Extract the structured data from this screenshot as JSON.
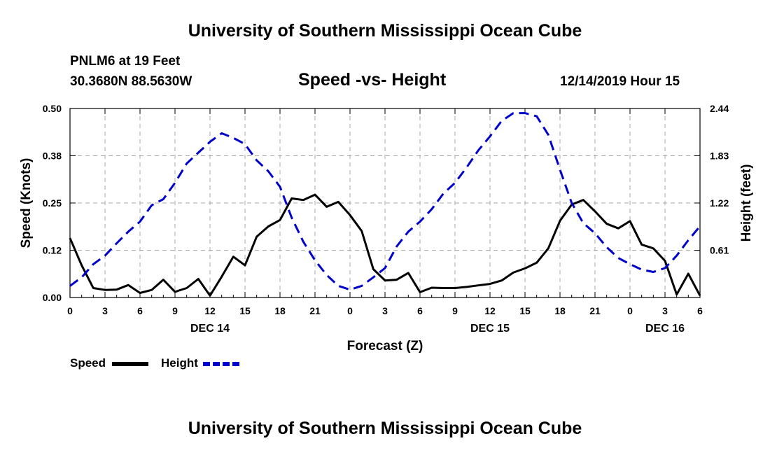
{
  "header": {
    "top_title": "University of Southern Mississippi Ocean Cube",
    "bottom_title": "University of Southern Mississippi Ocean Cube",
    "station": "PNLM6 at 19 Feet",
    "coords": "30.3680N 88.5630W",
    "date_hour": "12/14/2019 Hour 15"
  },
  "chart_data": {
    "type": "line",
    "title": "Speed -vs- Height",
    "xlabel": "Forecast (Z)",
    "ylabel": "Speed (Knots)",
    "y2label": "Height (feet)",
    "ylim": [
      0,
      0.5
    ],
    "y2lim": [
      0,
      2.44
    ],
    "xlim": [
      0,
      54
    ],
    "x_tick_values": [
      0,
      3,
      6,
      9,
      12,
      15,
      18,
      21,
      24,
      27,
      30,
      33,
      36,
      39,
      42,
      45,
      48,
      51,
      54
    ],
    "x_tick_labels": [
      "0",
      "3",
      "6",
      "9",
      "12",
      "15",
      "18",
      "21",
      "0",
      "3",
      "6",
      "9",
      "12",
      "15",
      "18",
      "21",
      "0",
      "3",
      "6"
    ],
    "y_tick_labels": [
      "0.00",
      "0.12",
      "0.25",
      "0.38",
      "0.50"
    ],
    "y_tick_values": [
      0,
      0.125,
      0.25,
      0.375,
      0.5
    ],
    "y2_tick_labels": [
      "0.61",
      "1.22",
      "1.83",
      "2.44"
    ],
    "y2_tick_values": [
      0.61,
      1.22,
      1.83,
      2.44
    ],
    "day_labels": [
      {
        "label": "DEC 14",
        "x": 12
      },
      {
        "label": "DEC 15",
        "x": 36
      },
      {
        "label": "DEC 16",
        "x": 51
      }
    ],
    "grid": true,
    "legend": [
      {
        "name": "Speed",
        "color": "#000000",
        "style": "solid"
      },
      {
        "name": "Height",
        "color": "#0000cc",
        "style": "dashed"
      }
    ],
    "series": [
      {
        "name": "Speed",
        "axis": "left",
        "color": "#000000",
        "x": [
          0,
          1,
          2,
          3,
          4,
          5,
          6,
          7,
          8,
          9,
          10,
          11,
          12,
          13,
          14,
          15,
          16,
          17,
          18,
          19,
          20,
          21,
          22,
          23,
          24,
          25,
          26,
          27,
          28,
          29,
          30,
          31,
          32,
          33,
          34,
          35,
          36,
          37,
          38,
          39,
          40,
          41,
          42,
          43,
          44,
          45,
          46,
          47,
          48,
          49,
          50,
          51,
          52,
          53,
          54
        ],
        "values": [
          0.157,
          0.085,
          0.025,
          0.02,
          0.021,
          0.033,
          0.012,
          0.02,
          0.047,
          0.015,
          0.025,
          0.049,
          0.005,
          0.055,
          0.108,
          0.085,
          0.161,
          0.188,
          0.205,
          0.262,
          0.258,
          0.272,
          0.24,
          0.253,
          0.218,
          0.176,
          0.075,
          0.045,
          0.047,
          0.065,
          0.014,
          0.026,
          0.025,
          0.025,
          0.028,
          0.032,
          0.036,
          0.045,
          0.066,
          0.077,
          0.092,
          0.13,
          0.203,
          0.246,
          0.258,
          0.228,
          0.195,
          0.183,
          0.202,
          0.14,
          0.13,
          0.097,
          0.008,
          0.063,
          0.005
        ]
      },
      {
        "name": "Height",
        "axis": "right",
        "color": "#0000cc",
        "x": [
          0,
          1,
          2,
          3,
          4,
          5,
          6,
          7,
          8,
          9,
          10,
          11,
          12,
          13,
          14,
          15,
          16,
          17,
          18,
          19,
          20,
          21,
          22,
          23,
          24,
          25,
          26,
          27,
          28,
          29,
          30,
          31,
          32,
          33,
          34,
          35,
          36,
          37,
          38,
          39,
          40,
          41,
          42,
          43,
          44,
          45,
          46,
          47,
          48,
          49,
          50,
          51,
          52,
          53,
          54
        ],
        "values": [
          0.15,
          0.26,
          0.43,
          0.54,
          0.7,
          0.85,
          0.98,
          1.19,
          1.27,
          1.48,
          1.73,
          1.87,
          2.01,
          2.12,
          2.06,
          1.98,
          1.77,
          1.63,
          1.43,
          1.03,
          0.72,
          0.48,
          0.29,
          0.15,
          0.1,
          0.15,
          0.26,
          0.38,
          0.66,
          0.85,
          0.98,
          1.14,
          1.34,
          1.48,
          1.68,
          1.9,
          2.08,
          2.28,
          2.38,
          2.38,
          2.34,
          2.1,
          1.65,
          1.22,
          0.96,
          0.83,
          0.65,
          0.51,
          0.43,
          0.36,
          0.33,
          0.38,
          0.54,
          0.74,
          0.92
        ]
      }
    ]
  }
}
